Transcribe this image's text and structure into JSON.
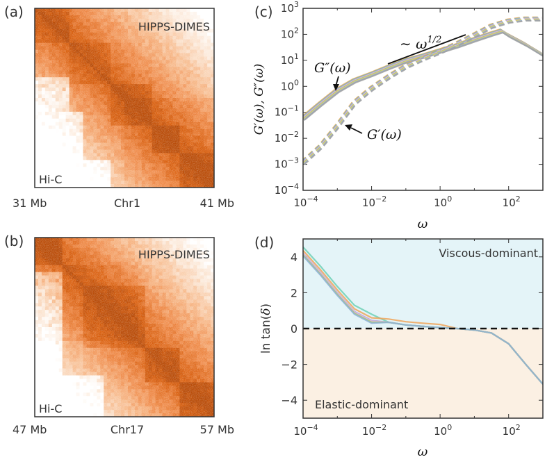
{
  "chart_data": [
    {
      "type": "heatmap",
      "panel": "(a)",
      "top_label": "HIPPS-DIMES",
      "bottom_label": "Hi-C",
      "x_left": "31 Mb",
      "x_mid": "Chr1",
      "x_right": "41 Mb",
      "colormap": [
        "#ffffff",
        "#fbe3cf",
        "#f7b98a",
        "#ef8a48",
        "#d95f0e",
        "#b84a06"
      ]
    },
    {
      "type": "heatmap",
      "panel": "(b)",
      "top_label": "HIPPS-DIMES",
      "bottom_label": "Hi-C",
      "x_left": "47 Mb",
      "x_mid": "Chr17",
      "x_right": "57 Mb",
      "colormap": [
        "#ffffff",
        "#fbe3cf",
        "#f7b98a",
        "#ef8a48",
        "#d95f0e",
        "#b84a06"
      ]
    },
    {
      "type": "line",
      "panel": "(c)",
      "xlabel": "ω",
      "ylabel": "G′(ω), G″(ω)",
      "xscale": "log",
      "yscale": "log",
      "xlim_exp": [
        -4,
        3
      ],
      "ylim_exp": [
        -4,
        3
      ],
      "x_tick_labels": [
        "10^-4",
        "10^-2",
        "10^0",
        "10^2"
      ],
      "y_tick_labels": [
        "10^-4",
        "10^-3",
        "10^-2",
        "10^-1",
        "10^0",
        "10^1",
        "10^2",
        "10^3"
      ],
      "slope_annotation": "∼ ω^1/2",
      "annotations": [
        "G″(ω)",
        "G′(ω)"
      ],
      "series": [
        {
          "name": "G'' (solid)",
          "style": "solid",
          "points": [
            [
              -4.0,
              -1.25
            ],
            [
              -3.5,
              -0.7
            ],
            [
              -3.0,
              -0.18
            ],
            [
              -2.5,
              0.2
            ],
            [
              -2.0,
              0.45
            ],
            [
              -1.5,
              0.72
            ],
            [
              -1.0,
              0.97
            ],
            [
              -0.5,
              1.15
            ],
            [
              0.0,
              1.35
            ],
            [
              0.5,
              1.55
            ],
            [
              1.0,
              1.78
            ],
            [
              1.5,
              2.0
            ],
            [
              1.8,
              2.12
            ],
            [
              2.0,
              1.95
            ],
            [
              2.5,
              1.6
            ],
            [
              3.0,
              1.2
            ]
          ]
        },
        {
          "name": "G' (dashed)",
          "style": "dashed",
          "points": [
            [
              -4.0,
              -2.95
            ],
            [
              -3.5,
              -2.35
            ],
            [
              -3.0,
              -1.55
            ],
            [
              -2.5,
              -0.65
            ],
            [
              -2.0,
              -0.1
            ],
            [
              -1.5,
              0.35
            ],
            [
              -1.0,
              0.75
            ],
            [
              -0.5,
              1.05
            ],
            [
              0.0,
              1.32
            ],
            [
              0.5,
              1.62
            ],
            [
              1.0,
              1.95
            ],
            [
              1.5,
              2.3
            ],
            [
              2.0,
              2.5
            ],
            [
              2.5,
              2.58
            ],
            [
              3.0,
              2.58
            ]
          ]
        }
      ],
      "colors": [
        "#f0a45a",
        "#6fbfa8",
        "#b6a3d8",
        "#e8b6de",
        "#9ccd6a",
        "#f1cd6b",
        "#8fb0d8",
        "#a0a0a0"
      ]
    },
    {
      "type": "line",
      "panel": "(d)",
      "xlabel": "ω",
      "ylabel": "ln tan(δ)",
      "xscale": "log",
      "xlim_exp": [
        -4,
        3
      ],
      "ylim": [
        -5,
        5
      ],
      "x_tick_labels": [
        "10^-4",
        "10^-2",
        "10^0",
        "10^2"
      ],
      "y_ticks": [
        -4,
        -2,
        0,
        2,
        4
      ],
      "region_top": "Viscous-dominant",
      "region_bottom": "Elastic-dominant",
      "reference_line": 0,
      "series": [
        {
          "name": "ln tan(δ)",
          "style": "solid",
          "points": [
            [
              -4.0,
              4.3
            ],
            [
              -3.5,
              3.25
            ],
            [
              -3.0,
              2.1
            ],
            [
              -2.5,
              1.05
            ],
            [
              -2.0,
              0.55
            ],
            [
              -1.5,
              0.35
            ],
            [
              -1.0,
              0.2
            ],
            [
              -0.5,
              0.12
            ],
            [
              0.0,
              0.05
            ],
            [
              0.5,
              0.0
            ],
            [
              1.0,
              -0.08
            ],
            [
              1.5,
              -0.25
            ],
            [
              2.0,
              -0.85
            ],
            [
              2.5,
              -2.0
            ],
            [
              3.0,
              -3.1
            ]
          ]
        }
      ],
      "colors": [
        "#6fd0b6",
        "#f0a45a",
        "#b6a3d8",
        "#e8b6de",
        "#9ccd6a",
        "#8fb0d8"
      ]
    }
  ]
}
